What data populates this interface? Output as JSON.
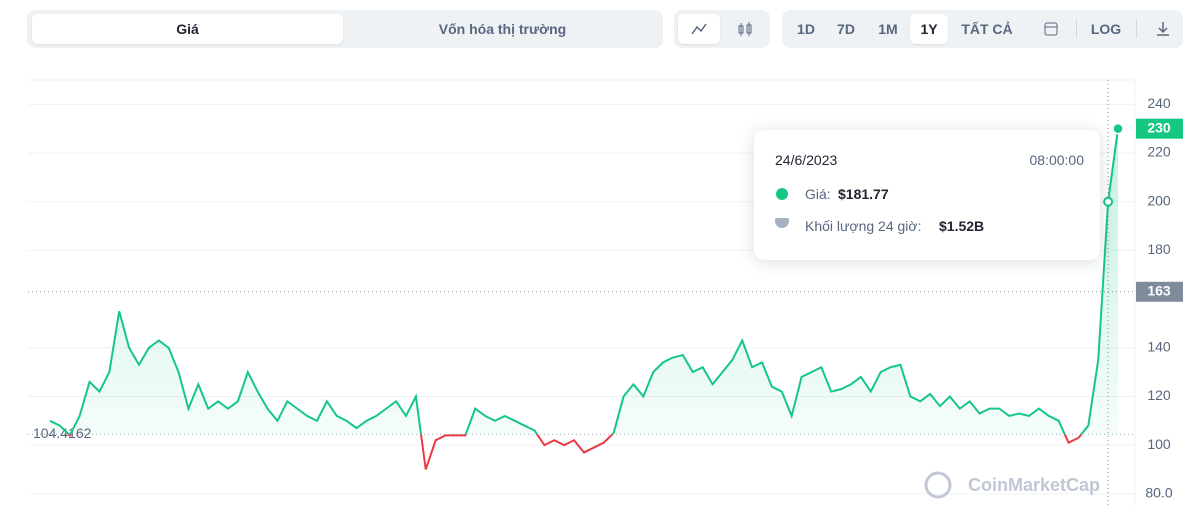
{
  "tabs": [
    "Giá",
    "Vốn hóa thị trường"
  ],
  "ranges": [
    "1D",
    "7D",
    "1M",
    "1Y",
    "TẤT CẢ"
  ],
  "log": "LOG",
  "watermark": "CoinMarketCap",
  "tooltip": {
    "date": "24/6/2023",
    "time": "08:00:00",
    "price_label": "Giá:",
    "price": "$181.77",
    "volume_label": "Khối lượng 24 giờ:",
    "volume": "$1.52B"
  },
  "chart_data": {
    "type": "line",
    "values": [
      110,
      108,
      104,
      112,
      126,
      122,
      130,
      155,
      140,
      133,
      140,
      143,
      140,
      130,
      115,
      125,
      115,
      118,
      115,
      118,
      130,
      122,
      115,
      110,
      118,
      115,
      112,
      110,
      118,
      112,
      110,
      107,
      110,
      112,
      115,
      118,
      112,
      120,
      90,
      102,
      104,
      104,
      104,
      115,
      112,
      110,
      112,
      110,
      108,
      106,
      100,
      102,
      100,
      102,
      97,
      99,
      101,
      105,
      120,
      125,
      120,
      130,
      134,
      136,
      137,
      130,
      132,
      125,
      130,
      135,
      143,
      132,
      134,
      124,
      122,
      112,
      128,
      130,
      132,
      122,
      123,
      125,
      128,
      122,
      130,
      132,
      133,
      120,
      118,
      121,
      116,
      120,
      115,
      118,
      113,
      115,
      115,
      112,
      113,
      112,
      115,
      112,
      110,
      101,
      103,
      108,
      135,
      200,
      230
    ],
    "color_up": "#16c784",
    "color_down": "#ea3943",
    "baseline": 104.4162,
    "current": 163,
    "ylim": [
      75,
      250
    ],
    "yticks": [
      240,
      220,
      200,
      180,
      140,
      120,
      100,
      {
        "value": 80,
        "label": "80.0"
      }
    ],
    "grid": true
  }
}
